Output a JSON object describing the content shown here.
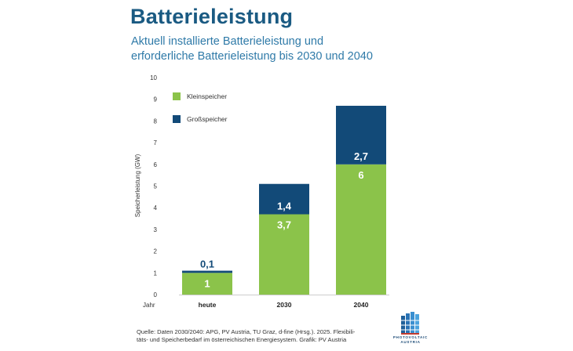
{
  "title": "Batterieleistung",
  "subtitle": {
    "line1": "Aktuell installierte Batterieleistung und",
    "line2": "erforderliche Batterieleistung bis 2030 und 2040"
  },
  "source": {
    "line1": "Quelle: Daten 2030/2040: APG, PV Austria, TU Graz, d-fine (Hrsg.). 2025. Flexibili-",
    "line2": "täts- und Speicherbedarf im österreichischen Energiesystem. Grafik: PV Austria"
  },
  "logo": {
    "line1": "PHOTOVOLTAIC",
    "line2": "AUSTRIA"
  },
  "colors": {
    "klein": "#8bc34a",
    "gross": "#124a78",
    "title": "#1a5a82",
    "subtitle": "#2f7aa8"
  },
  "chart_data": {
    "type": "bar",
    "stacked": true,
    "categories": [
      "heute",
      "2030",
      "2040"
    ],
    "series": [
      {
        "name": "Kleinspeicher",
        "values": [
          1,
          3.7,
          6
        ],
        "labels": [
          "1",
          "3,7",
          "6"
        ]
      },
      {
        "name": "Großspeicher",
        "values": [
          0.1,
          1.4,
          2.7
        ],
        "labels": [
          "0,1",
          "1,4",
          "2,7"
        ]
      }
    ],
    "xlabel": "Jahr",
    "ylabel": "Speicherleistung (GW)",
    "ylim": [
      0,
      10
    ],
    "yticks": [
      0,
      1,
      2,
      3,
      4,
      5,
      6,
      7,
      8,
      9,
      10
    ],
    "grid": false,
    "legend": "top-left"
  }
}
